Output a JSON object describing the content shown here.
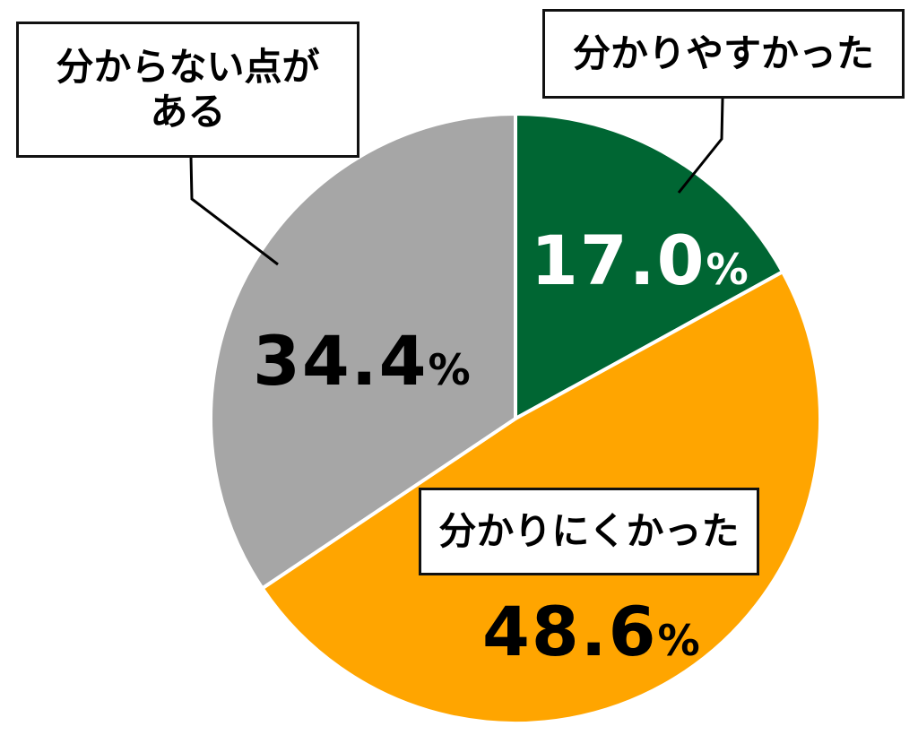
{
  "chart_data": {
    "type": "pie",
    "title": "",
    "categories": [
      "分かりやすかった",
      "分かりにくかった",
      "分からない点がある"
    ],
    "values": [
      17.0,
      48.6,
      34.4
    ],
    "unit": "%",
    "colors": [
      "#006633",
      "#FFA500",
      "#A6A6A6"
    ],
    "start_angle_deg": 0,
    "direction": "clockwise",
    "legend": "none (callout labels)"
  },
  "slices": [
    {
      "label": "分かりやすかった",
      "value_text": "17.0",
      "unit": "%",
      "color": "#006633",
      "text_color": "#FFFFFF"
    },
    {
      "label": "分かりにくかった",
      "value_text": "48.6",
      "unit": "%",
      "color": "#FFA500",
      "text_color": "#000000"
    },
    {
      "label_line1": "分からない点が",
      "label_line2": "ある",
      "value_text": "34.4",
      "unit": "%",
      "color": "#A6A6A6",
      "text_color": "#000000"
    }
  ]
}
